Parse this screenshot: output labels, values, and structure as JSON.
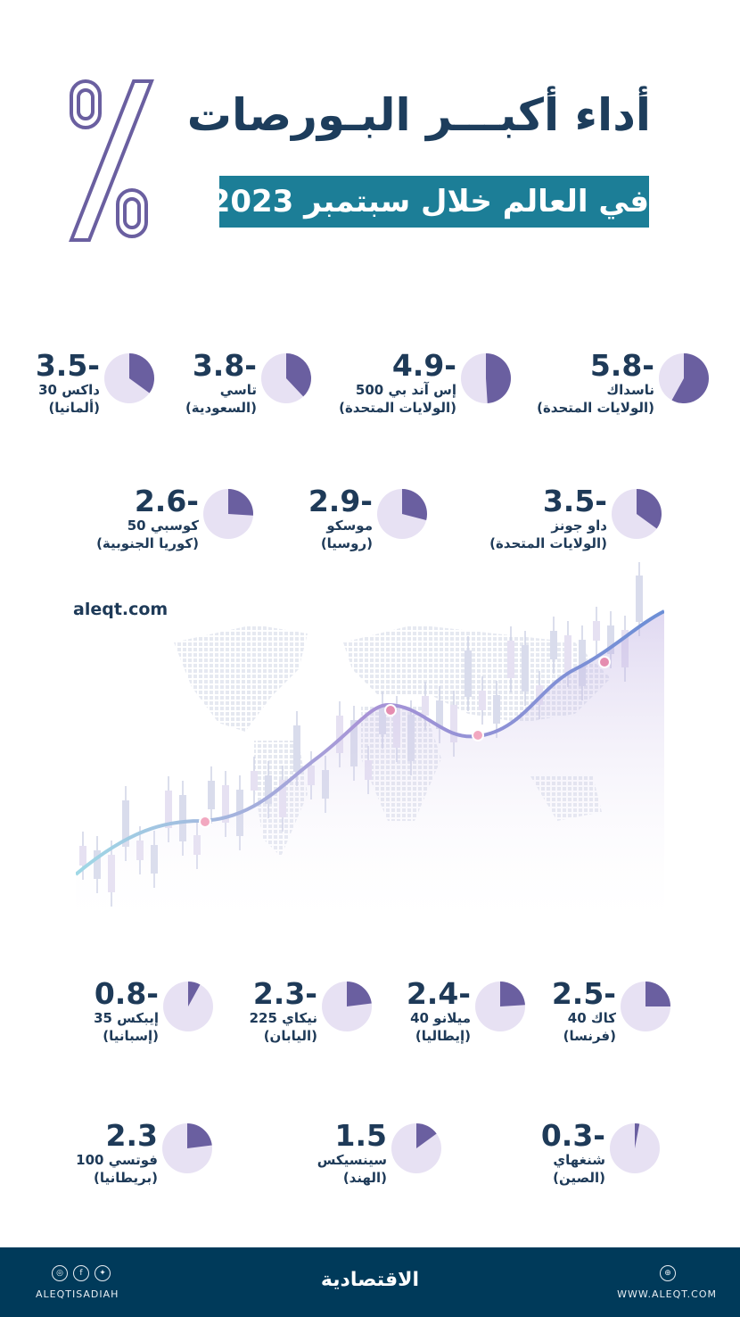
{
  "header": {
    "title": "أداء أكبـــر البـورصات",
    "subtitle": "في العالم خلال سبتمبر 2023",
    "percent_icon": "percent-icon"
  },
  "markets": [
    {
      "value": "5.8-",
      "name": "ناسداك",
      "country": "(الولايات المتحدة)",
      "change": -5.8
    },
    {
      "value": "4.9-",
      "name": "إس آند بي 500",
      "country": "(الولايات المتحدة)",
      "change": -4.9
    },
    {
      "value": "3.8-",
      "name": "تاسي",
      "country": "(السعودية)",
      "change": -3.8
    },
    {
      "value": "3.5-",
      "name": "داكس 30",
      "country": "(ألمانيا)",
      "change": -3.5
    },
    {
      "value": "3.5-",
      "name": "داو جونز",
      "country": "(الولايات المتحدة)",
      "change": -3.5
    },
    {
      "value": "2.9-",
      "name": "موسكو",
      "country": "(روسيا)",
      "change": -2.9
    },
    {
      "value": "2.6-",
      "name": "كوسبي 50",
      "country": "(كوريا الجنوبية)",
      "change": -2.6
    },
    {
      "value": "2.5-",
      "name": "كاك 40",
      "country": "(فرنسا)",
      "change": -2.5
    },
    {
      "value": "2.4-",
      "name": "ميلانو 40",
      "country": "(إيطاليا)",
      "change": -2.4
    },
    {
      "value": "2.3-",
      "name": "نيكاي 225",
      "country": "(اليابان)",
      "change": -2.3
    },
    {
      "value": "0.8-",
      "name": "إيبكس 35",
      "country": "(إسبانيا)",
      "change": -0.8
    },
    {
      "value": "0.3-",
      "name": "شنغهاي",
      "country": "(الصين)",
      "change": -0.3
    },
    {
      "value": "1.5",
      "name": "سينسيكس",
      "country": "(الهند)",
      "change": 1.5
    },
    {
      "value": "2.3",
      "name": "فوتسي 100",
      "country": "(بريطانيا)",
      "change": 2.3
    }
  ],
  "site": "aleqt.com",
  "footer": {
    "handle": "ALEQTISADIAH",
    "brand": "الاقتصادية",
    "website": "WWW.ALEQT.COM"
  },
  "colors": {
    "accent": "#1c7e97",
    "navy": "#1e3a58",
    "pie": "#6a5fa0",
    "footer": "#003a5a"
  }
}
